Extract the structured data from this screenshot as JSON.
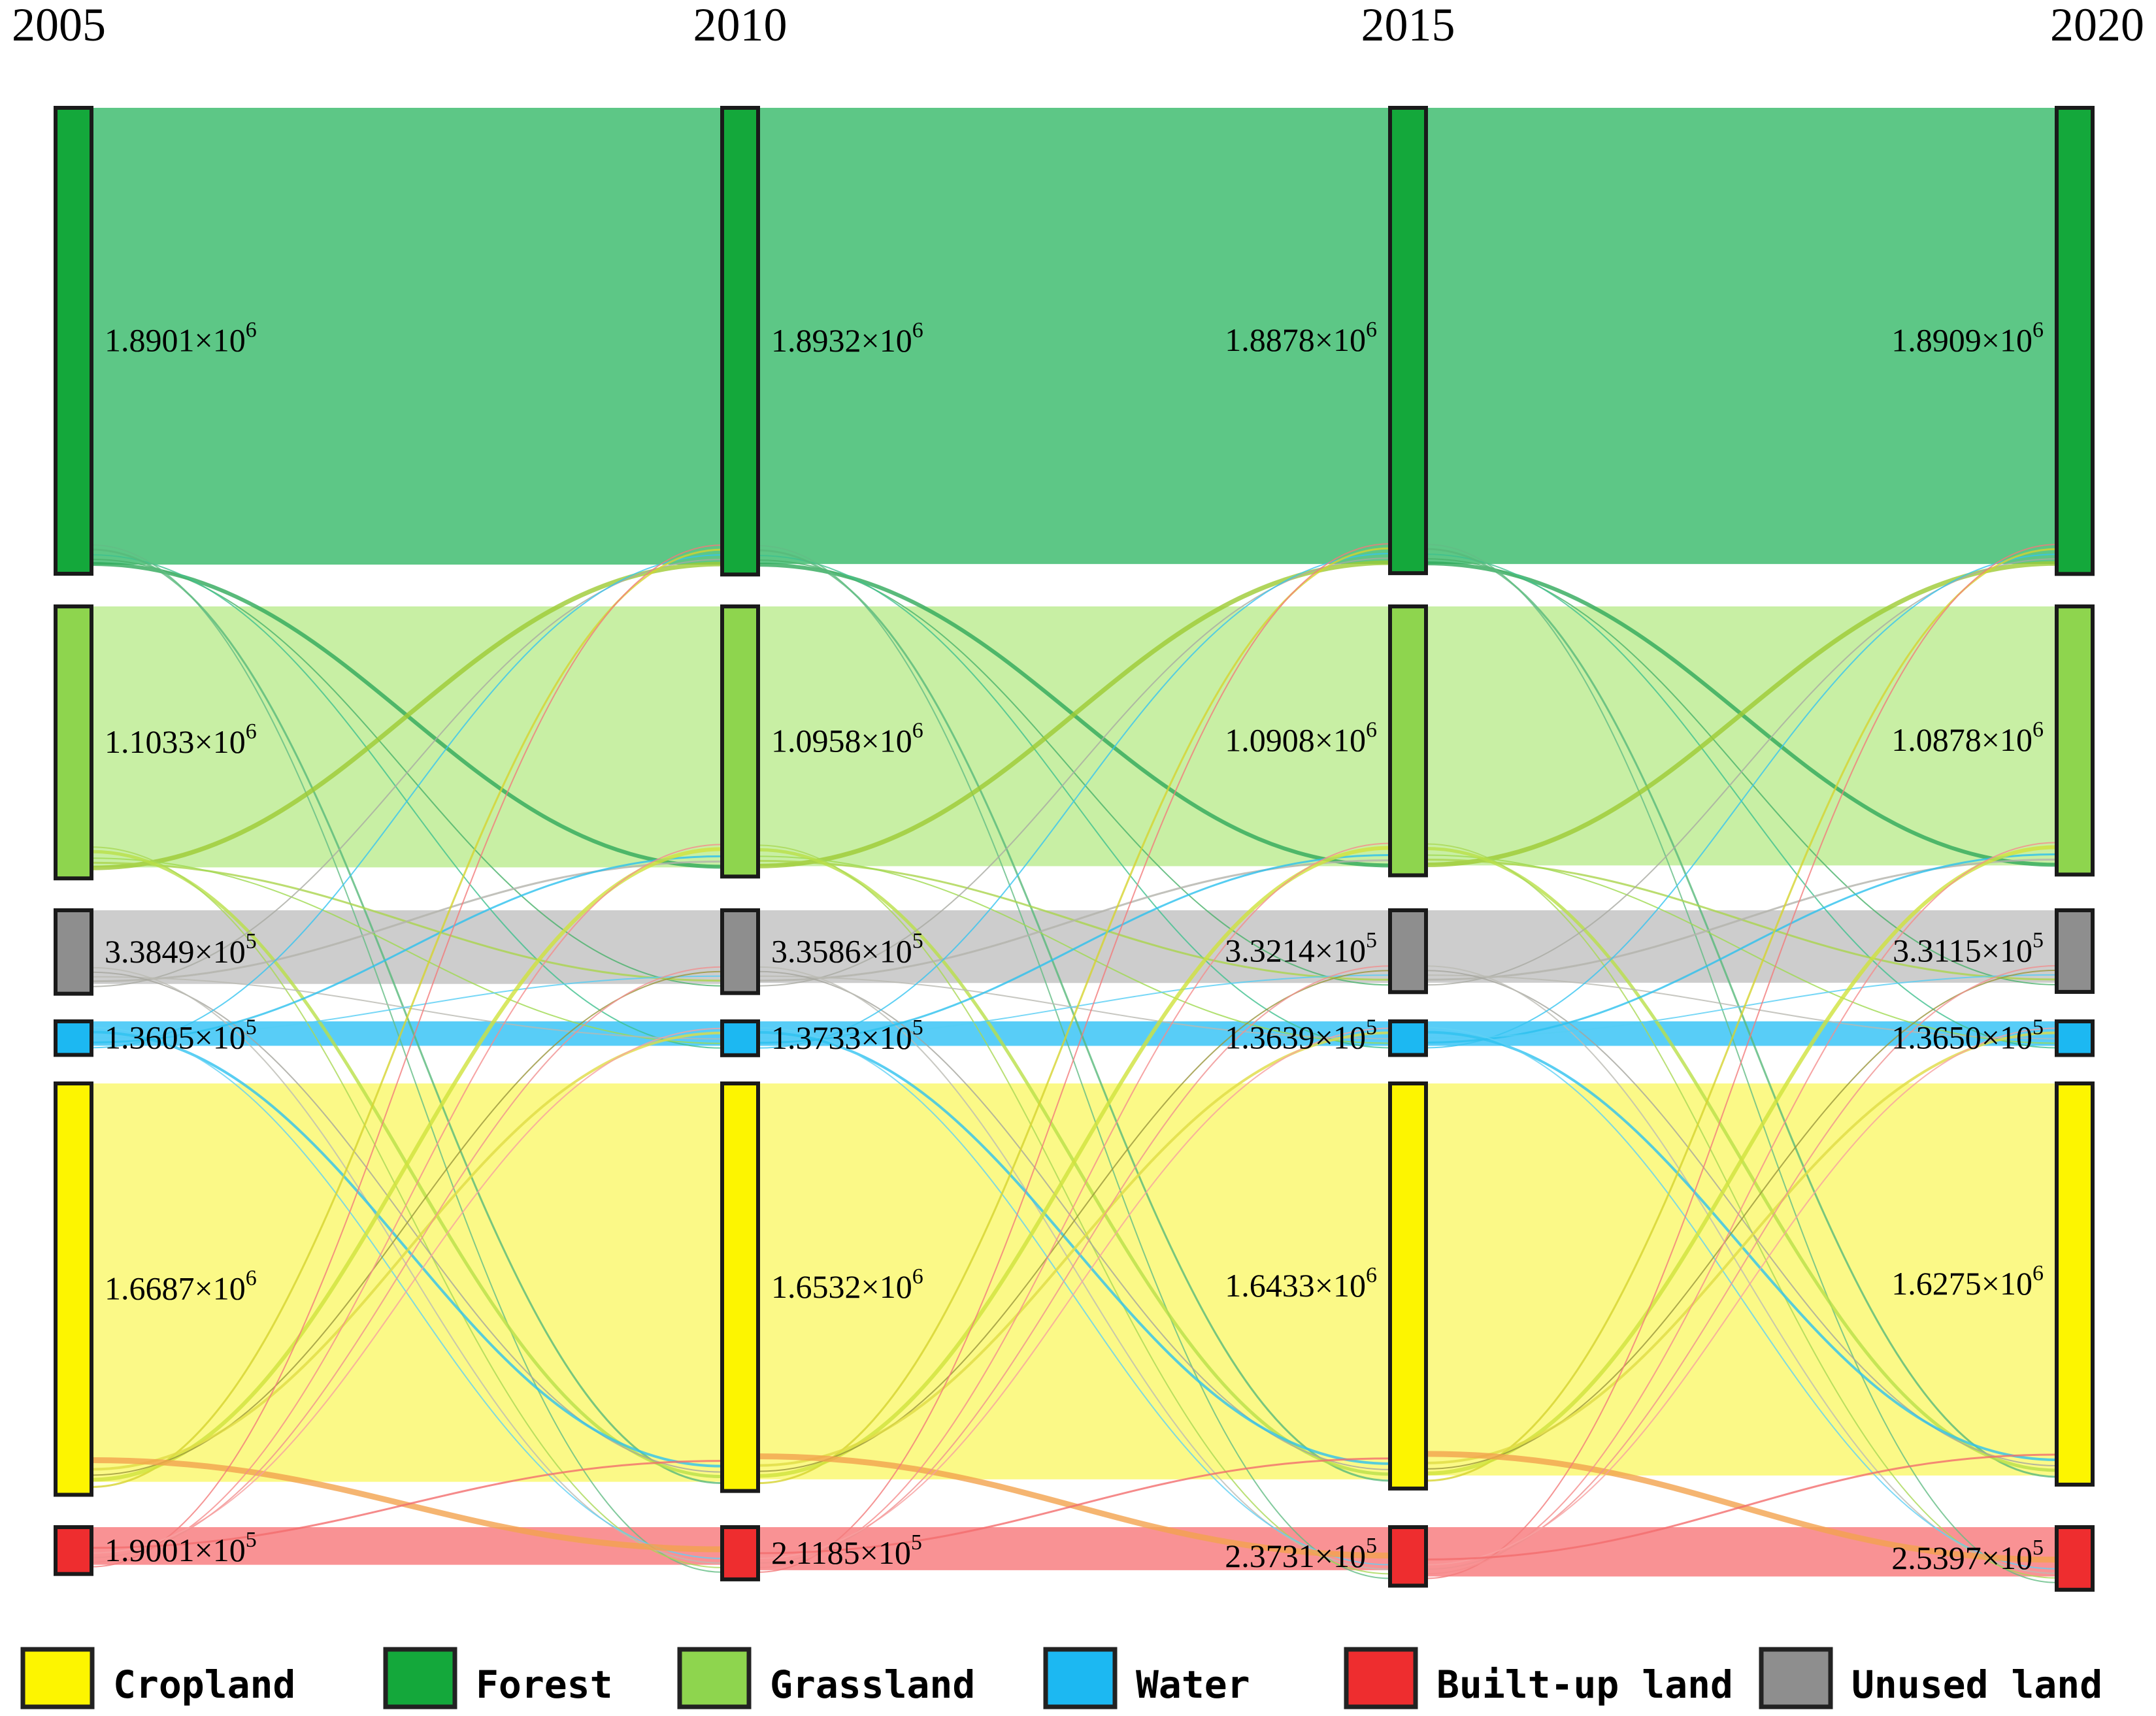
{
  "chart_data": {
    "type": "sankey",
    "title": "",
    "years": [
      "2005",
      "2010",
      "2015",
      "2020"
    ],
    "categories": [
      {
        "name": "Forest",
        "node_color": "#14a83b",
        "flow_color": "#4fc27c"
      },
      {
        "name": "Grassland",
        "node_color": "#8ed54e",
        "flow_color": "#c3ee9c"
      },
      {
        "name": "Unused land",
        "node_color": "#8e8e8e",
        "flow_color": "#c9c9c9"
      },
      {
        "name": "Water",
        "node_color": "#1cb8f2",
        "flow_color": "#4ac9f6"
      },
      {
        "name": "Cropland",
        "node_color": "#fdf500",
        "flow_color": "#fbf87d"
      },
      {
        "name": "Built-up land",
        "node_color": "#ee2d2f",
        "flow_color": "#f8898b"
      }
    ],
    "series": [
      {
        "name": "Forest",
        "values": [
          1890100,
          1893200,
          1887800,
          1890900
        ],
        "labels": [
          "1.8901×10^6",
          "1.8932×10^6",
          "1.8878×10^6",
          "1.8909×10^6"
        ]
      },
      {
        "name": "Grassland",
        "values": [
          1103300,
          1095800,
          1090800,
          1087800
        ],
        "labels": [
          "1.1033×10^6",
          "1.0958×10^6",
          "1.0908×10^6",
          "1.0878×10^6"
        ]
      },
      {
        "name": "Unused land",
        "values": [
          338490,
          335860,
          332140,
          331150
        ],
        "labels": [
          "3.3849×10^5",
          "3.3586×10^5",
          "3.3214×10^5",
          "3.3115×10^5"
        ]
      },
      {
        "name": "Water",
        "values": [
          136050,
          137330,
          136390,
          136500
        ],
        "labels": [
          "1.3605×10^5",
          "1.3733×10^5",
          "1.3639×10^5",
          "1.3650×10^5"
        ]
      },
      {
        "name": "Cropland",
        "values": [
          1668700,
          1653200,
          1643300,
          1627500
        ],
        "labels": [
          "1.6687×10^6",
          "1.6532×10^6",
          "1.6433×10^6",
          "1.6275×10^6"
        ]
      },
      {
        "name": "Built-up land",
        "values": [
          190010,
          211850,
          237310,
          253970
        ],
        "labels": [
          "1.9001×10^5",
          "2.1185×10^5",
          "2.3731×10^5",
          "2.5397×10^5"
        ]
      }
    ],
    "transitions": [
      {
        "from": "Forest",
        "to": "Grassland",
        "width": 6,
        "color": "#2fa95a"
      },
      {
        "from": "Forest",
        "to": "Unused land",
        "width": 2,
        "color": "#49b26a"
      },
      {
        "from": "Forest",
        "to": "Water",
        "width": 2,
        "color": "#3fc08f"
      },
      {
        "from": "Forest",
        "to": "Cropland",
        "width": 3,
        "color": "#57b97a"
      },
      {
        "from": "Forest",
        "to": "Built-up land",
        "width": 2,
        "color": "#63bd85"
      },
      {
        "from": "Grassland",
        "to": "Forest",
        "width": 7,
        "color": "#9ecb33"
      },
      {
        "from": "Grassland",
        "to": "Unused land",
        "width": 3,
        "color": "#aad44c"
      },
      {
        "from": "Grassland",
        "to": "Water",
        "width": 2,
        "color": "#9fd94f"
      },
      {
        "from": "Grassland",
        "to": "Cropland",
        "width": 5,
        "color": "#b9e048"
      },
      {
        "from": "Grassland",
        "to": "Built-up land",
        "width": 2,
        "color": "#a9d855"
      },
      {
        "from": "Unused land",
        "to": "Forest",
        "width": 2,
        "color": "#a9aaa2"
      },
      {
        "from": "Unused land",
        "to": "Grassland",
        "width": 3,
        "color": "#b3b3ab"
      },
      {
        "from": "Unused land",
        "to": "Water",
        "width": 2,
        "color": "#b9b9b1"
      },
      {
        "from": "Unused land",
        "to": "Cropland",
        "width": 2,
        "color": "#a5a59d"
      },
      {
        "from": "Unused land",
        "to": "Built-up land",
        "width": 2,
        "color": "#bcbcb4"
      },
      {
        "from": "Water",
        "to": "Forest",
        "width": 2,
        "color": "#37c4f0"
      },
      {
        "from": "Water",
        "to": "Grassland",
        "width": 3,
        "color": "#2cc0ee"
      },
      {
        "from": "Water",
        "to": "Unused land",
        "width": 2,
        "color": "#55cdf4"
      },
      {
        "from": "Water",
        "to": "Cropland",
        "width": 4,
        "color": "#30c2ef"
      },
      {
        "from": "Water",
        "to": "Built-up land",
        "width": 2,
        "color": "#60d1f5"
      },
      {
        "from": "Cropland",
        "to": "Forest",
        "width": 3,
        "color": "#d6d32f"
      },
      {
        "from": "Cropland",
        "to": "Grassland",
        "width": 6,
        "color": "#cfe23c"
      },
      {
        "from": "Cropland",
        "to": "Unused land",
        "width": 2,
        "color": "#9a953b"
      },
      {
        "from": "Cropland",
        "to": "Water",
        "width": 4,
        "color": "#e0dc45"
      },
      {
        "from": "Cropland",
        "to": "Built-up land",
        "width": 9,
        "color": "#f2a24e"
      },
      {
        "from": "Built-up land",
        "to": "Forest",
        "width": 2,
        "color": "#f27b7b"
      },
      {
        "from": "Built-up land",
        "to": "Grassland",
        "width": 2,
        "color": "#f58c8c"
      },
      {
        "from": "Built-up land",
        "to": "Unused land",
        "width": 2,
        "color": "#f09090"
      },
      {
        "from": "Built-up land",
        "to": "Water",
        "width": 2,
        "color": "#f8a0a0"
      },
      {
        "from": "Built-up land",
        "to": "Cropland",
        "width": 3,
        "color": "#f26d6d"
      }
    ],
    "legend": [
      "Cropland",
      "Forest",
      "Grassland",
      "Water",
      "Built-up land",
      "Unused land"
    ],
    "layout_hints": {
      "legend_position": "bottom",
      "columns": 4,
      "grid": false
    }
  }
}
